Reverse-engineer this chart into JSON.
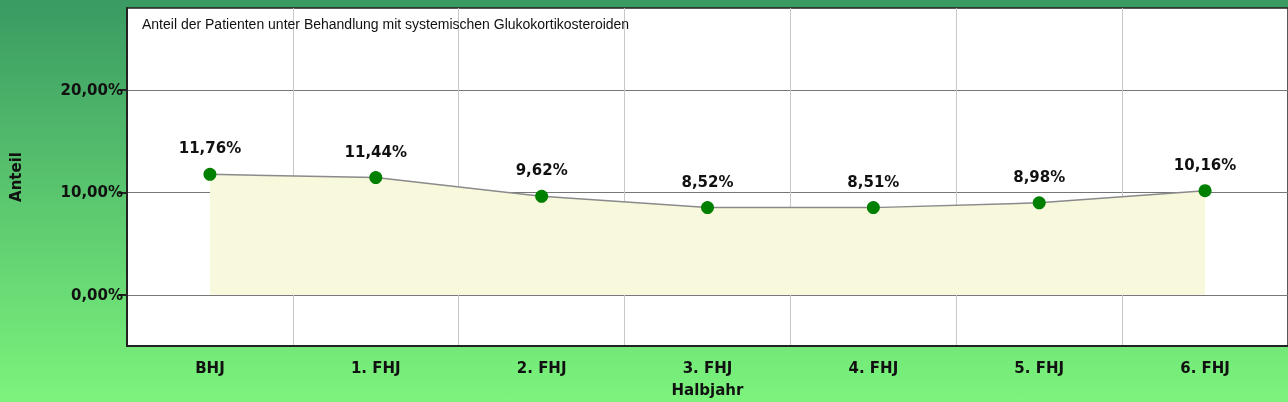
{
  "chart_data": {
    "type": "area",
    "title": "Anteil der Patienten unter Behandlung mit systemischen Glukokortikosteroiden",
    "xlabel": "Halbjahr",
    "ylabel": "Anteil",
    "categories": [
      "BHJ",
      "1. FHJ",
      "2. FHJ",
      "3. FHJ",
      "4. FHJ",
      "5. FHJ",
      "6. FHJ"
    ],
    "series": [
      {
        "color": "#008000",
        "values": [
          11.76,
          11.44,
          9.62,
          8.52,
          8.51,
          8.98,
          10.16
        ],
        "value_labels": [
          "11,76%",
          "11,44%",
          "9,62%",
          "8,52%",
          "8,51%",
          "8,98%",
          "10,16%"
        ]
      }
    ],
    "ylim": [
      -5,
      28
    ],
    "yticks": [
      {
        "value": 0,
        "label": "0,00%"
      },
      {
        "value": 10,
        "label": "10,00%"
      },
      {
        "value": 20,
        "label": "20,00%"
      }
    ],
    "grid": true,
    "marker": "circle"
  }
}
